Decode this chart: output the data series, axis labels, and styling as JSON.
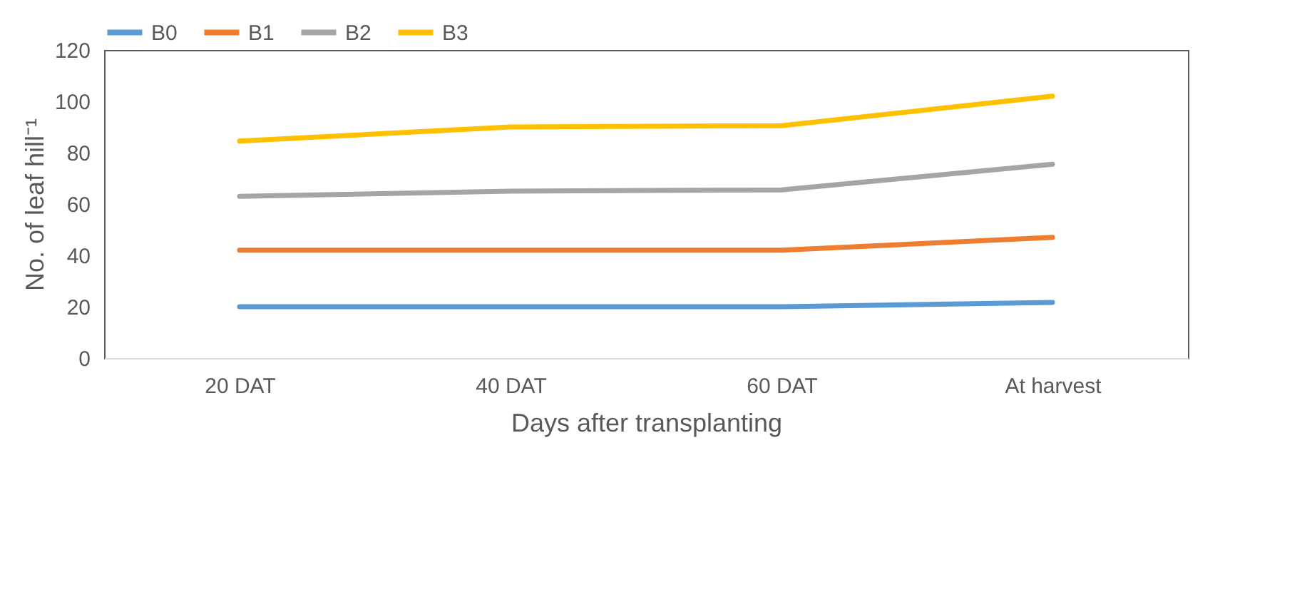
{
  "chart_data": {
    "type": "line",
    "xlabel": "Days after transplanting",
    "ylabel": "No. of leaf hill⁻¹",
    "categories": [
      "20 DAT",
      "40 DAT",
      "60 DAT",
      "At harvest"
    ],
    "series": [
      {
        "name": "B0",
        "color": "#5b9bd5",
        "values": [
          20,
          20,
          20,
          21.7
        ]
      },
      {
        "name": "B1",
        "color": "#ed7d31",
        "values": [
          42,
          42,
          42,
          47
        ]
      },
      {
        "name": "B2",
        "color": "#a5a5a5",
        "values": [
          63,
          65,
          65.5,
          75.5
        ]
      },
      {
        "name": "B3",
        "color": "#ffc000",
        "values": [
          84.5,
          90,
          90.5,
          102
        ]
      }
    ],
    "ylim": [
      0,
      120
    ],
    "yticks": [
      0,
      20,
      40,
      60,
      80,
      100,
      120
    ],
    "grid": false,
    "legend": "top",
    "marker": "none",
    "line_style": "solid"
  }
}
